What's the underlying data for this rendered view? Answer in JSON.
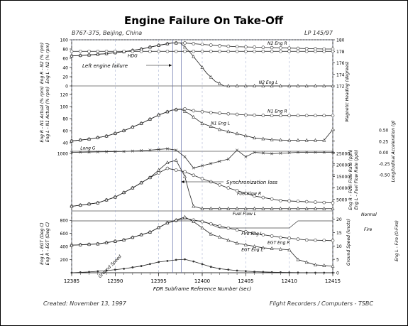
{
  "title": "Engine Failure On Take-Off",
  "header": {
    "left": "B767-375, Beijing, China",
    "right": "LP 145/97"
  },
  "footer": {
    "left": "Created: November 13, 1997",
    "right": "Flight Recorders / Computers - TSBC"
  },
  "chart_data": {
    "type": "line",
    "x": {
      "label": "FDR Subframe Reference Number (sec)",
      "range": [
        12385,
        12415
      ],
      "ticks": [
        "12385",
        "12390",
        "12395",
        "12400",
        "12405",
        "12410",
        "12415"
      ]
    },
    "annotations": [
      "Left engine failure",
      "Synchronization loss"
    ],
    "panels": [
      {
        "name": "n2",
        "left_axis_label": "Eng R - N2 (% rpm)\nEng L - N2 (% rpm)",
        "left_ticks": [
          "100",
          "80",
          "60",
          "40",
          "20",
          "0"
        ],
        "right_axis_label": "Magnetic Heading (degrees)",
        "right_ticks": [
          "180",
          "178",
          "176",
          "174",
          "172"
        ],
        "series": [
          {
            "name": "N2 Eng R",
            "x": [
              12385,
              12387,
              12389,
              12391,
              12393,
              12395,
              12396.5,
              12398,
              12400,
              12402,
              12404,
              12406,
              12408,
              12410,
              12412,
              12414,
              12415
            ],
            "values": [
              65,
              67,
              70,
              74,
              80,
              88,
              93,
              93,
              90,
              87,
              85,
              84,
              83,
              82,
              81,
              80,
              80
            ]
          },
          {
            "name": "N2 Eng L",
            "x": [
              12385,
              12387,
              12389,
              12391,
              12393,
              12395,
              12396.5,
              12397.5,
              12398.5,
              12399.5,
              12400.5,
              12401.5,
              12402.5,
              12405,
              12410,
              12415
            ],
            "values": [
              65,
              67,
              70,
              74,
              80,
              88,
              93,
              93,
              75,
              52,
              28,
              10,
              0,
              0,
              0,
              0
            ],
            "label": "N2 Eng L"
          },
          {
            "name": "HDG",
            "x": [
              12385,
              12388,
              12391,
              12394,
              12397,
              12400,
              12403,
              12406,
              12409,
              12412,
              12415
            ],
            "values": [
              178,
              178,
              178,
              178,
              178,
              178,
              178,
              178,
              178,
              178,
              178
            ]
          }
        ]
      },
      {
        "name": "n1",
        "left_axis_label": "Eng R - N1 Actual (% rpm)\nEng L - N1 Actual (% rpm)",
        "left_ticks": [
          "120",
          "100",
          "80",
          "60",
          "40"
        ],
        "series": [
          {
            "name": "N1 Eng R",
            "x": [
              12385,
              12387,
              12389,
              12391,
              12393,
              12395,
              12396.5,
              12398,
              12399,
              12401,
              12403,
              12405,
              12408,
              12411,
              12415
            ],
            "values": [
              43,
              46,
              51,
              60,
              72,
              86,
              94,
              96,
              93,
              90,
              88,
              86,
              85,
              85,
              85
            ]
          },
          {
            "name": "N1 Eng L",
            "x": [
              12385,
              12387,
              12389,
              12391,
              12393,
              12395,
              12396.5,
              12397.5,
              12398.5,
              12400,
              12402,
              12404,
              12406,
              12408,
              12410,
              12412,
              12414,
              12415
            ],
            "values": [
              43,
              46,
              51,
              60,
              72,
              86,
              94,
              96,
              88,
              72,
              62,
              55,
              48,
              45,
              44,
              44,
              44,
              62
            ]
          }
        ]
      },
      {
        "name": "long_g",
        "right_axis_label": "Longitudinal Acceleration (g)",
        "right_ticks": [
          "0.50",
          "0.25",
          "0.00",
          "-0.25",
          "-0.50"
        ],
        "series": [
          {
            "name": "Long G",
            "x": [
              12385,
              12388,
              12391,
              12394,
              12396,
              12397,
              12398,
              12399,
              12400,
              12401,
              12402,
              12403,
              12404,
              12405,
              12406,
              12408,
              12411,
              12415
            ],
            "values": [
              0.0,
              0.01,
              0.02,
              0.05,
              0.08,
              0.05,
              -0.1,
              -0.35,
              -0.3,
              -0.25,
              -0.2,
              -0.15,
              0.05,
              -0.1,
              0.0,
              -0.03,
              0.0,
              0.0
            ]
          }
        ]
      },
      {
        "name": "fuel_flow",
        "left_ticks": [
          "1000"
        ],
        "right_axis_label": "Eng R - Fuel Flow Rate (pph)\nEng L - Fuel Flow Rate (pph)",
        "right_ticks": [
          "25000",
          "20000",
          "15000",
          "10000",
          "5000"
        ],
        "series": [
          {
            "name": "Fuel Flow R",
            "x": [
              12385,
              12388,
              12390,
              12392,
              12394,
              12396,
              12398,
              12400,
              12403,
              12406,
              12409,
              12412,
              12415
            ],
            "values": [
              2000,
              3500,
              6000,
              10000,
              14500,
              18500,
              17000,
              14000,
              10000,
              6500,
              4500,
              4000,
              3500
            ]
          },
          {
            "name": "Fuel Flow L",
            "x": [
              12385,
              12388,
              12390,
              12392,
              12394,
              12396,
              12397,
              12398,
              12398.5,
              12399,
              12400,
              12402,
              12405,
              12410,
              12415
            ],
            "values": [
              2000,
              3500,
              6000,
              10000,
              14500,
              21000,
              22000,
              15000,
              8000,
              2000,
              1000,
              1000,
              1000,
              1000,
              1000
            ]
          }
        ]
      },
      {
        "name": "egt",
        "left_axis_label": "Eng L - EGT (Deg C)\nEng R - EGT (Deg C)",
        "left_ticks": [
          "800",
          "600",
          "400",
          "200"
        ],
        "right_axis_label": "Ground Speed (knots)",
        "right_ticks": [
          "20",
          "15",
          "10",
          "5",
          "0"
        ],
        "fire_axis": {
          "label": "Eng L - Fire (0-Fire)",
          "ticks": [
            "Normal",
            "Fire"
          ]
        },
        "series": [
          {
            "name": "EGT Eng R",
            "x": [
              12385,
              12388,
              12391,
              12394,
              12396,
              12398,
              12400,
              12403,
              12406,
              12409,
              12412,
              12415
            ],
            "values": [
              420,
              440,
              500,
              620,
              760,
              830,
              780,
              680,
              600,
              540,
              500,
              490
            ]
          },
          {
            "name": "EGT Eng L",
            "x": [
              12385,
              12388,
              12391,
              12394,
              12396,
              12398,
              12399,
              12401,
              12404,
              12407,
              12410,
              12411,
              12413,
              12415
            ],
            "values": [
              420,
              440,
              500,
              620,
              760,
              850,
              780,
              590,
              450,
              380,
              350,
              200,
              120,
              100
            ]
          },
          {
            "name": "Fire Eng L",
            "x": [
              12385,
              12399,
              12400,
              12402,
              12410,
              12411,
              12415
            ],
            "values": [
              1,
              1,
              1,
              0,
              0,
              1,
              1
            ]
          },
          {
            "name": "Ground Speed",
            "x": [
              12385,
              12387,
              12389,
              12391,
              12393,
              12395,
              12397,
              12398,
              12399,
              12400,
              12401,
              12402,
              12404,
              12406,
              12408,
              12410,
              12412,
              12414,
              12415
            ],
            "values": [
              0,
              0.3,
              0.8,
              1.5,
              2.5,
              4,
              4.8,
              5,
              4.2,
              3.2,
              2.2,
              1.5,
              0.8,
              0.4,
              0.2,
              0.1,
              0,
              0,
              0
            ]
          }
        ]
      }
    ],
    "grid": true
  }
}
